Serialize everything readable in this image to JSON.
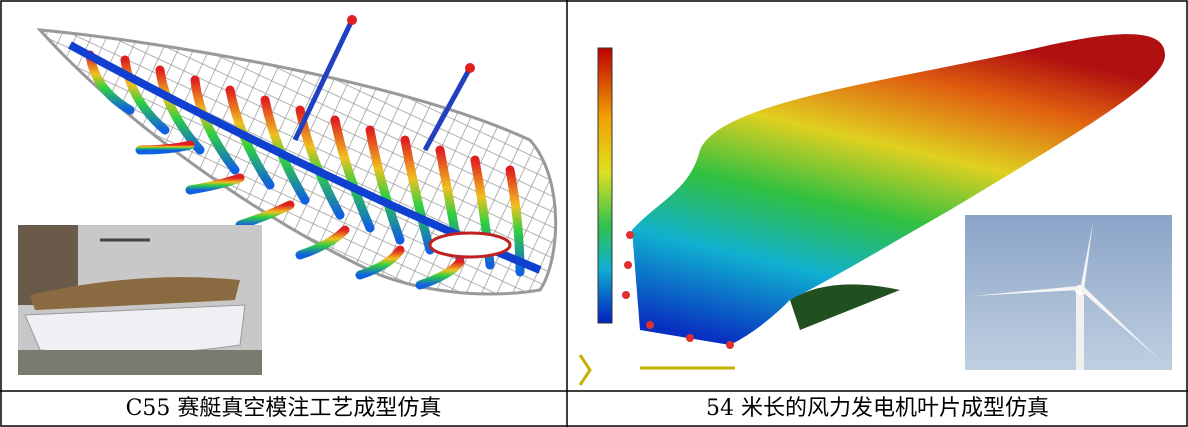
{
  "captions": [
    "C55 赛艇真空模注工艺成型仿真",
    "54 米长的风力发电机叶片成型仿真"
  ]
}
